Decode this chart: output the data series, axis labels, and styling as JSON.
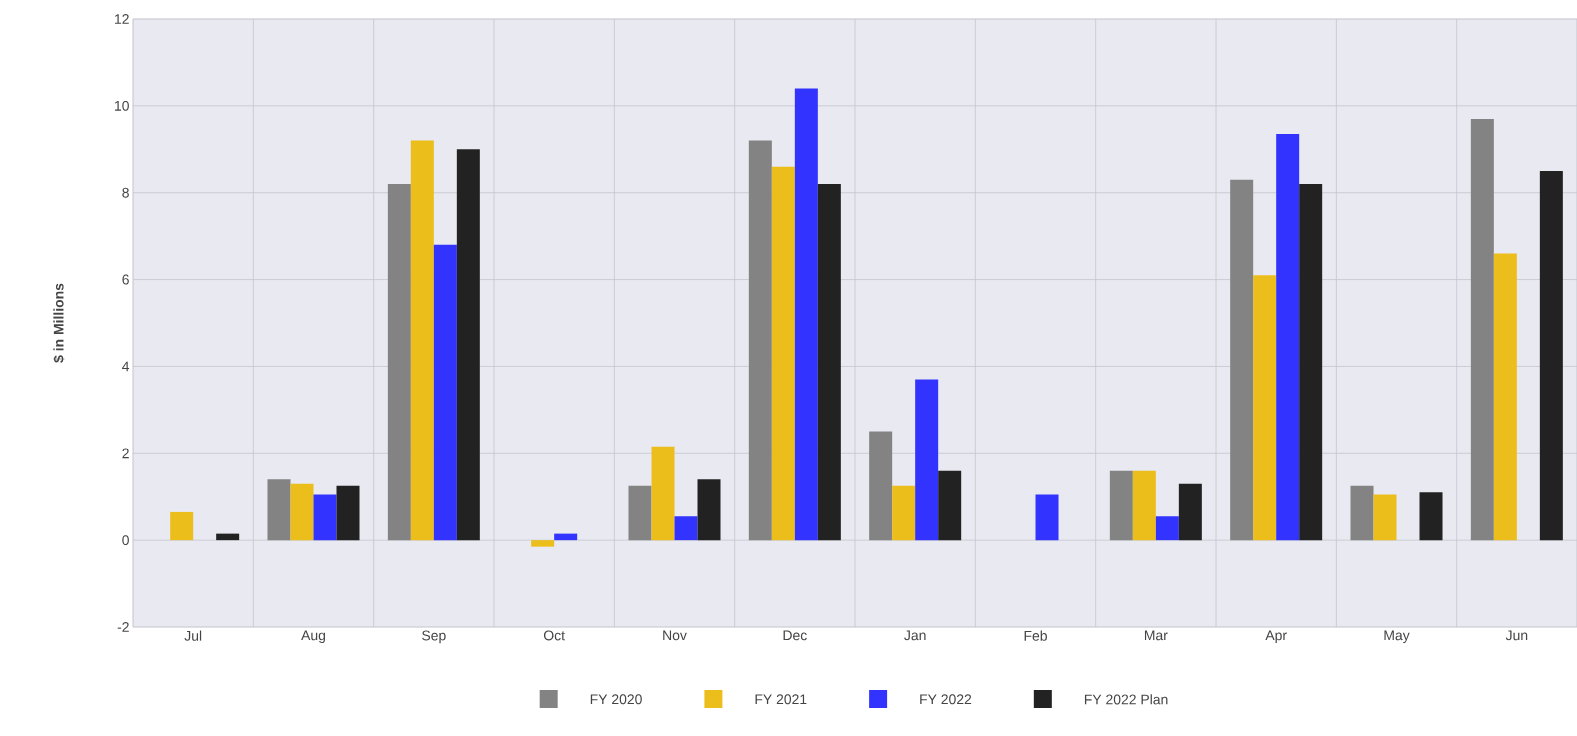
{
  "chart_data": {
    "type": "bar",
    "ylabel": "$ in Millions",
    "categories": [
      "Jul",
      "Aug",
      "Sep",
      "Oct",
      "Nov",
      "Dec",
      "Jan",
      "Feb",
      "Mar",
      "Apr",
      "May",
      "Jun"
    ],
    "series": [
      {
        "name": "FY 2020",
        "color": "#838383",
        "values": [
          0,
          1.4,
          8.2,
          0,
          1.25,
          9.2,
          2.5,
          0,
          1.6,
          8.3,
          1.25,
          9.7
        ]
      },
      {
        "name": "FY 2021",
        "color": "#ecbe1c",
        "values": [
          0.65,
          1.3,
          9.2,
          -0.15,
          2.15,
          8.6,
          1.25,
          0,
          1.6,
          6.1,
          1.05,
          6.6
        ]
      },
      {
        "name": "FY 2022",
        "color": "#3333ff",
        "values": [
          0,
          1.05,
          6.8,
          0.15,
          0.55,
          10.4,
          3.7,
          1.05,
          0.55,
          9.35,
          null,
          null
        ]
      },
      {
        "name": "FY 2022 Plan",
        "color": "#222222",
        "values": [
          0.15,
          1.25,
          9.0,
          0,
          1.4,
          8.2,
          1.6,
          0,
          1.3,
          8.2,
          1.1,
          8.5
        ]
      }
    ],
    "ylim": [
      -2,
      12
    ],
    "yticks": [
      -2,
      0,
      2,
      4,
      6,
      8,
      10,
      12
    ],
    "grid": true,
    "legend": "bottom"
  }
}
